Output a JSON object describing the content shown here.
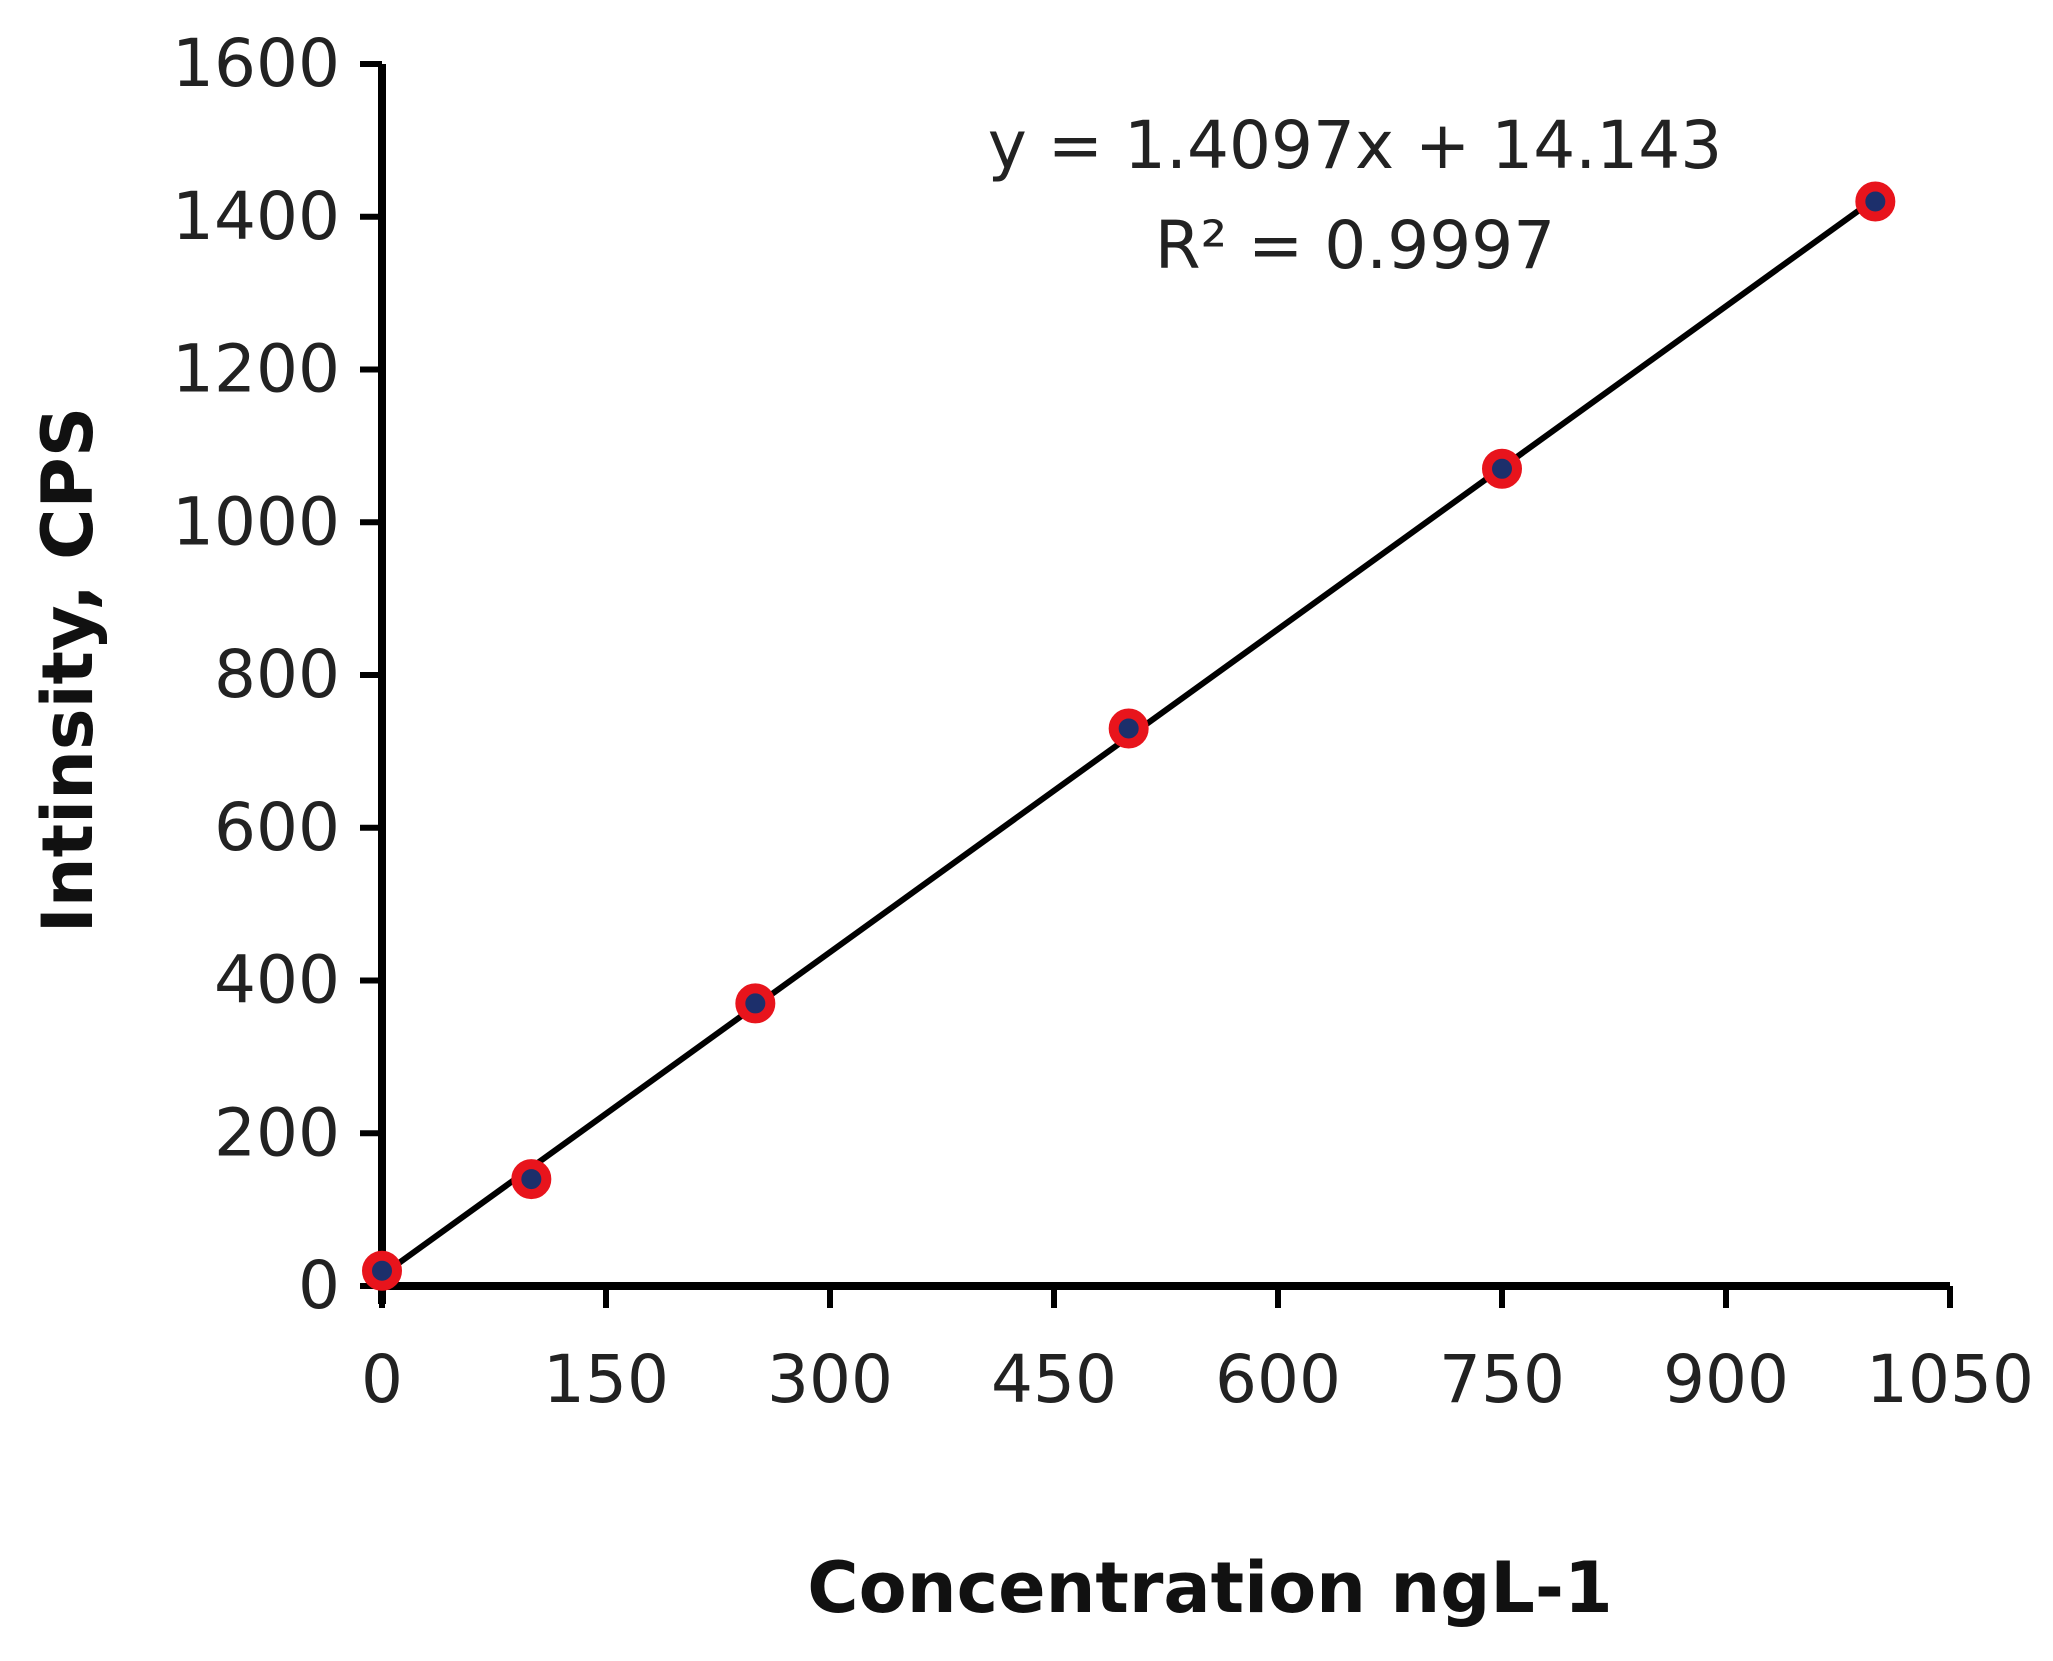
{
  "chart_data": {
    "type": "scatter",
    "xlabel": "Concentration ngL-1",
    "ylabel": "Intinsity, CPS",
    "xlim": [
      0,
      1050
    ],
    "ylim": [
      0,
      1600
    ],
    "x_ticks": [
      "0",
      "150",
      "300",
      "450",
      "600",
      "750",
      "900",
      "1050"
    ],
    "y_ticks": [
      "0",
      "200",
      "400",
      "600",
      "800",
      "1000",
      "1200",
      "1400",
      "1600"
    ],
    "x": [
      0,
      100,
      250,
      500,
      750,
      1000
    ],
    "y": [
      20,
      140,
      370,
      730,
      1070,
      1420
    ],
    "trendline": {
      "type": "linear",
      "slope": 1.4097,
      "intercept": 14.143,
      "x_range": [
        0,
        1000
      ],
      "equation": "y = 1.4097x + 14.143",
      "r_squared": "R² = 0.9997"
    },
    "grid": false,
    "legend": "none",
    "colors": {
      "marker_outline": "#e8141c",
      "marker_fill": "#1c2f6b",
      "line": "#000000",
      "axis": "#000000"
    }
  }
}
